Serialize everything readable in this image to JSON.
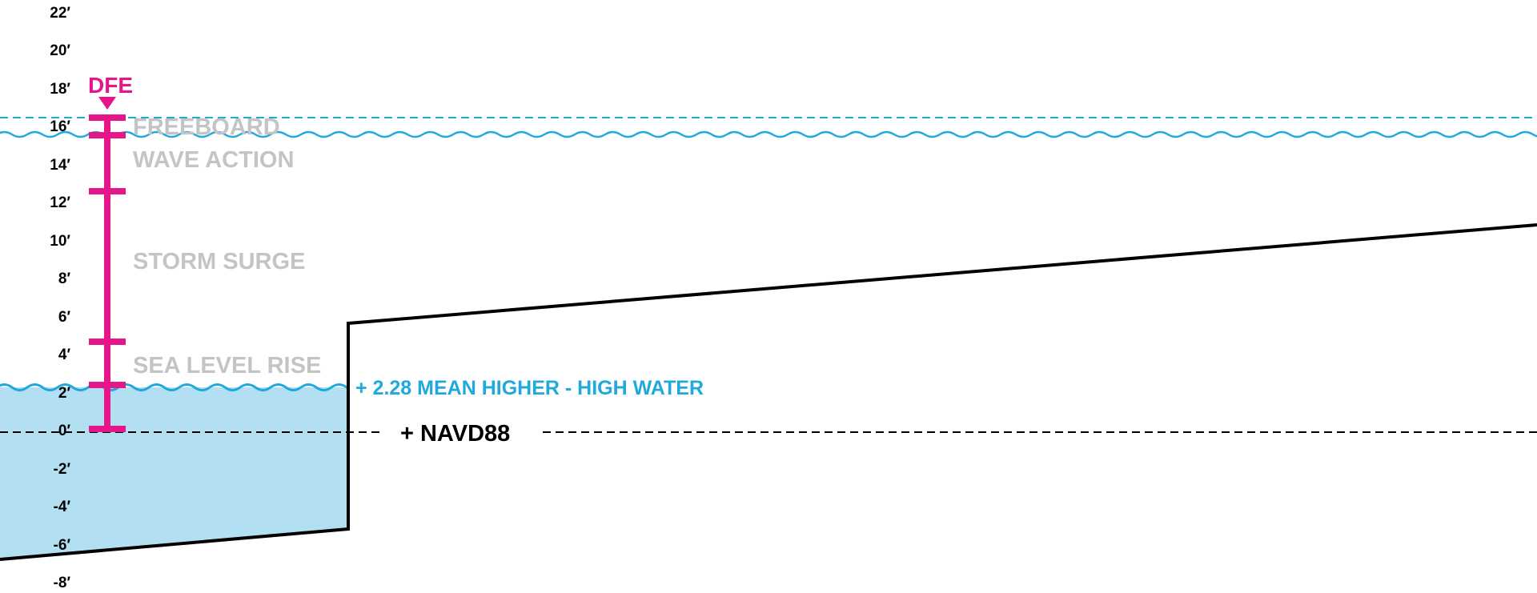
{
  "chart_data": {
    "type": "diagram",
    "y_unit": "feet",
    "y_ticks": [
      {
        "value": 22,
        "label": "22′"
      },
      {
        "value": 20,
        "label": "20′"
      },
      {
        "value": 18,
        "label": "18′"
      },
      {
        "value": 16,
        "label": "16′"
      },
      {
        "value": 14,
        "label": "14′"
      },
      {
        "value": 12,
        "label": "12′"
      },
      {
        "value": 10,
        "label": "10′"
      },
      {
        "value": 8,
        "label": "8′"
      },
      {
        "value": 6,
        "label": "6′"
      },
      {
        "value": 4,
        "label": "4′"
      },
      {
        "value": 2,
        "label": "2′"
      },
      {
        "value": 0,
        "label": "0′"
      },
      {
        "value": -2,
        "label": "-2′"
      },
      {
        "value": -4,
        "label": "-4′"
      },
      {
        "value": -6,
        "label": "-6′"
      },
      {
        "value": -8,
        "label": "-8′"
      }
    ],
    "dfe": {
      "label": "DFE",
      "value": 16.5
    },
    "segments": [
      {
        "label": "FREEBOARD",
        "from": 15.5,
        "to": 16.5
      },
      {
        "label": "WAVE ACTION",
        "from": 12.7,
        "to": 15.5
      },
      {
        "label": "STORM SURGE",
        "from": 4.8,
        "to": 12.7
      },
      {
        "label": "SEA LEVEL RISE",
        "from": 2.28,
        "to": 4.8
      }
    ],
    "mean_higher_high_water": {
      "label": "+ 2.28 MEAN HIGHER - HIGH WATER",
      "value": 2.28
    },
    "datum": {
      "label": "+ NAVD88",
      "value": 0
    },
    "colors": {
      "dfe": "#e6168a",
      "water_line": "#1fa9dc",
      "water_fill": "#b3dff3",
      "segment_label": "#c4c4c4",
      "ground": "#000000"
    }
  }
}
